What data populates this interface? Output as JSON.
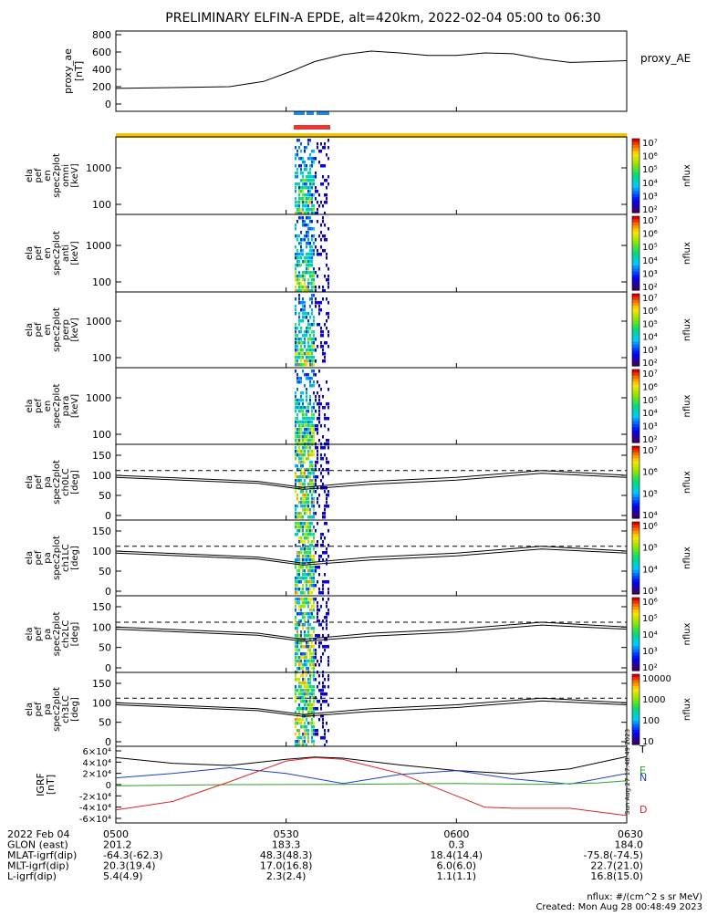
{
  "title": "PRELIMINARY ELFIN-A EPDE, alt=420km, 2022-02-04 05:00 to 06:30",
  "footer": {
    "units": "nflux: #/(cm^2 s sr MeV)",
    "created": "Created: Mon Aug 28 00:48:49 2023",
    "side_stamp": "Sun Aug 27 17:48:49 2023"
  },
  "colors": {
    "frame": "#000000",
    "blue_bar": "#1e88e5",
    "red_bar": "#e53935",
    "yellow_bar": "#f2c500",
    "b_total": "#000000",
    "b_n": "#1f3fbf",
    "b_e": "#2ca02c",
    "b_d": "#d62728"
  },
  "x_axis": {
    "tick_labels": [
      "0500",
      "0530",
      "0600",
      "0630"
    ],
    "rows": [
      {
        "label": "2022 Feb 04",
        "values": [
          "0500",
          "0530",
          "0600",
          "0630"
        ]
      },
      {
        "label": "GLON (east)",
        "values": [
          "201.2",
          "183.3",
          "0.3",
          "184.0"
        ]
      },
      {
        "label": "MLAT-igrf(dip)",
        "values": [
          "-64.3(-62.3)",
          "48.3(48.3)",
          "18.4(14.4)",
          "-75.8(-74.5)"
        ]
      },
      {
        "label": "MLT-igrf(dip)",
        "values": [
          "20.3(19.4)",
          "17.0(16.8)",
          "6.0(6.0)",
          "22.7(21.0)"
        ]
      },
      {
        "label": "L-igrf(dip)",
        "values": [
          "5.4(4.9)",
          "2.3(2.4)",
          "1.1(1.1)",
          "16.8(15.0)"
        ]
      }
    ]
  },
  "panels": [
    {
      "id": "proxy_ae",
      "ylabel": [
        "proxy_ae",
        "[nT]"
      ],
      "yticks": [
        "0",
        "200",
        "400",
        "600",
        "800"
      ],
      "side_label": "proxy_AE"
    },
    {
      "id": "omni",
      "ylabel": [
        "ela",
        "pef",
        "en",
        "spec2plot",
        "omni",
        "[keV]"
      ],
      "yticks": [
        "100",
        "1000"
      ],
      "cb_label": "nflux"
    },
    {
      "id": "anti",
      "ylabel": [
        "ela",
        "pef",
        "en",
        "spec2plot",
        "anti",
        "[keV]"
      ],
      "yticks": [
        "100",
        "1000"
      ],
      "cb_label": "nflux"
    },
    {
      "id": "perp",
      "ylabel": [
        "ela",
        "pef",
        "en",
        "spec2plot",
        "perp",
        "[keV]"
      ],
      "yticks": [
        "100",
        "1000"
      ],
      "cb_label": "nflux"
    },
    {
      "id": "para",
      "ylabel": [
        "ela",
        "pef",
        "en",
        "spec2plot",
        "para",
        "[keV]"
      ],
      "yticks": [
        "100",
        "1000"
      ],
      "cb_label": "nflux"
    },
    {
      "id": "ch0",
      "ylabel": [
        "ela",
        "pef",
        "pa",
        "spec2plot",
        "ch0LC",
        "[deg]"
      ],
      "yticks": [
        "0",
        "50",
        "100",
        "150"
      ],
      "cb_label": "nflux"
    },
    {
      "id": "ch1",
      "ylabel": [
        "ela",
        "pef",
        "pa",
        "spec2plot",
        "ch1LC",
        "[deg]"
      ],
      "yticks": [
        "0",
        "50",
        "100",
        "150"
      ],
      "cb_label": "nflux"
    },
    {
      "id": "ch2",
      "ylabel": [
        "ela",
        "pef",
        "pa",
        "spec2plot",
        "ch2LC",
        "[deg]"
      ],
      "yticks": [
        "0",
        "50",
        "100",
        "150"
      ],
      "cb_label": "nflux"
    },
    {
      "id": "ch3",
      "ylabel": [
        "ela",
        "pef",
        "pa",
        "spec2plot",
        "ch3LC",
        "[deg]"
      ],
      "yticks": [
        "0",
        "50",
        "100",
        "150"
      ],
      "cb_label": "nflux"
    },
    {
      "id": "bfield",
      "ylabel": [
        "IGRF",
        "[nT]"
      ],
      "yticks": [
        "-6×10⁴",
        "-4×10⁴",
        "-2×10⁴",
        "0",
        "2×10⁴",
        "4×10⁴",
        "6×10⁴"
      ],
      "legend": [
        "T",
        "E",
        "N",
        "D"
      ]
    }
  ],
  "colorbars": [
    {
      "ticks": [
        "10⁷",
        "10⁶",
        "10⁵",
        "10⁴",
        "10³",
        "10²"
      ]
    },
    {
      "ticks": [
        "10⁷",
        "10⁶",
        "10⁵",
        "10⁴",
        "10³",
        "10²"
      ]
    },
    {
      "ticks": [
        "10⁷",
        "10⁶",
        "10⁵",
        "10⁴",
        "10³",
        "10²"
      ]
    },
    {
      "ticks": [
        "10⁷",
        "10⁶",
        "10⁵",
        "10⁴",
        "10³",
        "10²"
      ]
    },
    {
      "ticks": [
        "10⁷",
        "10⁶",
        "10⁵",
        "10⁴"
      ]
    },
    {
      "ticks": [
        "10⁶",
        "10⁵",
        "10⁴",
        "10³"
      ]
    },
    {
      "ticks": [
        "10⁶",
        "10⁵",
        "10⁴",
        "10³",
        "10²"
      ]
    },
    {
      "ticks": [
        "10000",
        "1000",
        "100",
        "10"
      ]
    }
  ],
  "chart_data": {
    "type": "line",
    "x_range_ut_min": [
      0,
      90
    ],
    "proxy_ae": {
      "ylim": [
        0,
        800
      ],
      "x": [
        0,
        10,
        20,
        26,
        31,
        35,
        40,
        45,
        50,
        55,
        60,
        65,
        70,
        75,
        80,
        85,
        90
      ],
      "y": [
        180,
        190,
        200,
        260,
        380,
        490,
        570,
        610,
        590,
        560,
        560,
        590,
        580,
        520,
        480,
        490,
        500
      ]
    },
    "bfield": {
      "ylim": [
        -60000,
        60000
      ],
      "series": [
        {
          "name": "T",
          "x": [
            0,
            10,
            20,
            30,
            35,
            40,
            50,
            60,
            70,
            80,
            90
          ],
          "y": [
            48000,
            38000,
            34000,
            45000,
            49000,
            47000,
            35000,
            25000,
            19000,
            28000,
            50000
          ]
        },
        {
          "name": "N",
          "x": [
            0,
            10,
            20,
            30,
            40,
            50,
            60,
            70,
            80,
            90
          ],
          "y": [
            12000,
            20000,
            30000,
            20000,
            2000,
            18000,
            25000,
            10000,
            1000,
            20000
          ]
        },
        {
          "name": "E",
          "x": [
            0,
            20,
            40,
            60,
            75,
            85,
            90
          ],
          "y": [
            -2000,
            0,
            500,
            2000,
            500,
            3000,
            7000
          ]
        },
        {
          "name": "D",
          "x": [
            0,
            10,
            20,
            30,
            35,
            40,
            50,
            60,
            65,
            70,
            80,
            90
          ],
          "y": [
            -45000,
            -30000,
            5000,
            42000,
            48000,
            45000,
            20000,
            -20000,
            -40000,
            -42000,
            -42000,
            -55000
          ]
        }
      ]
    }
  }
}
